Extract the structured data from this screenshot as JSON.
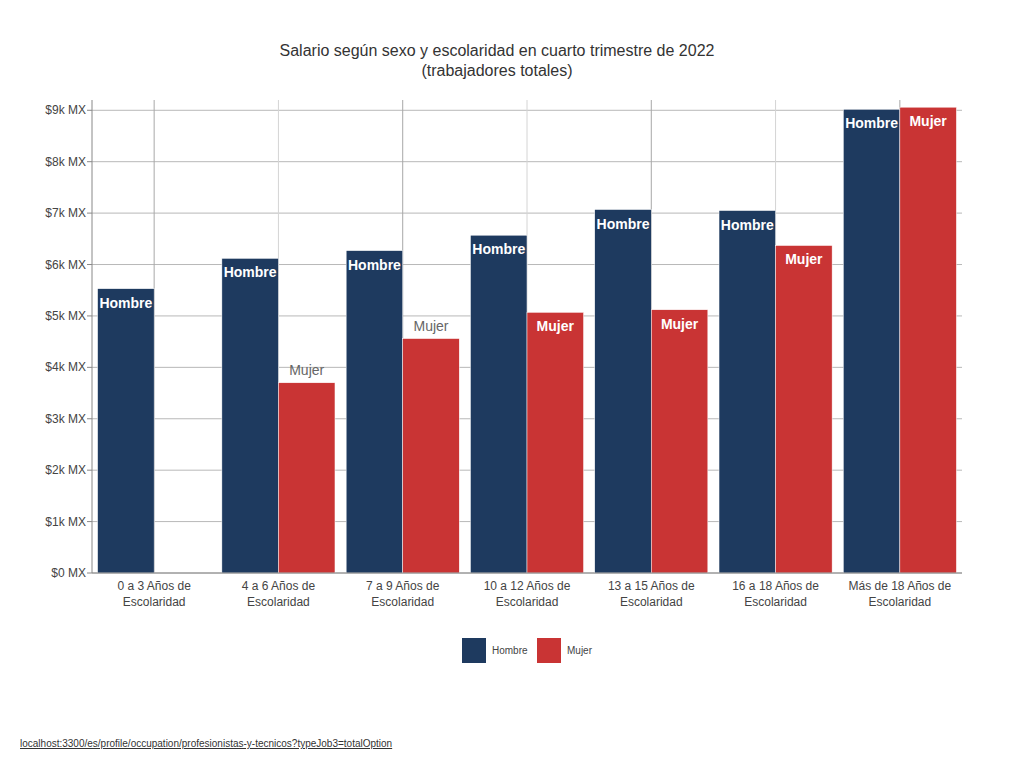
{
  "chart_data": {
    "type": "bar",
    "title": "Salario según sexo y escolaridad en cuarto trimestre de 2022",
    "subtitle": "(trabajadores totales)",
    "categories": [
      "0 a 3 Años de Escolaridad",
      "4 a 6 Años de Escolaridad",
      "7 a 9 Años de Escolaridad",
      "10 a 12 Años de Escolaridad",
      "13 a 15 Años de Escolaridad",
      "16 a 18 Años de Escolaridad",
      "Más de 18 Años de Escolaridad"
    ],
    "series": [
      {
        "name": "Hombre",
        "color": "#1e3a5f",
        "values": [
          5530,
          6120,
          6270,
          6570,
          7070,
          7050,
          9020
        ]
      },
      {
        "name": "Mujer",
        "color": "#c93434",
        "values": [
          null,
          3700,
          4560,
          5070,
          5120,
          6370,
          9060
        ]
      }
    ],
    "ylim": [
      0,
      9200
    ],
    "yticks": [
      {
        "value": 0,
        "label": "$0 MX"
      },
      {
        "value": 1000,
        "label": "$1k MX"
      },
      {
        "value": 2000,
        "label": "$2k MX"
      },
      {
        "value": 3000,
        "label": "$3k MX"
      },
      {
        "value": 4000,
        "label": "$4k MX"
      },
      {
        "value": 5000,
        "label": "$5k MX"
      },
      {
        "value": 6000,
        "label": "$6k MX"
      },
      {
        "value": 7000,
        "label": "$7k MX"
      },
      {
        "value": 8000,
        "label": "$8k MX"
      },
      {
        "value": 9000,
        "label": "$9k MX"
      }
    ],
    "grid": true,
    "legend": "bottom",
    "source": "localhost:3300/es/profile/occupation/profesionistas-y-tecnicos?typeJob3=totalOption"
  }
}
